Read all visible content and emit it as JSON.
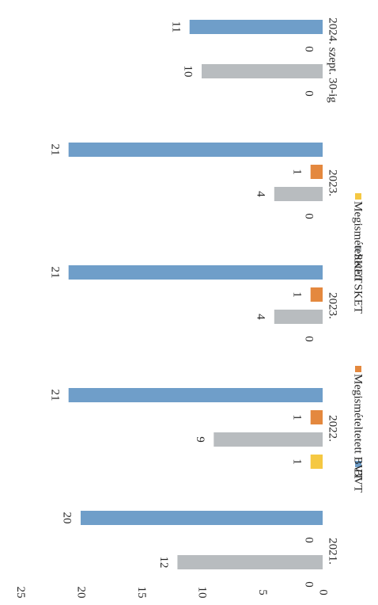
{
  "chart_data": {
    "type": "bar",
    "orientation": "horizontal-bars-rotated-page",
    "categories": [
      "2021.",
      "2022.",
      "2023.",
      "2023.",
      "2024. szept. 30-ig"
    ],
    "series": [
      {
        "name": "BVT",
        "color": "#6f9ec9",
        "values": [
          20,
          21,
          21,
          21,
          11
        ],
        "labels": [
          "20",
          "21",
          "21",
          "21",
          "11"
        ]
      },
      {
        "name": "Megismételtetett BVT",
        "color": "#e4883e",
        "values": [
          0,
          1,
          1,
          1,
          0
        ],
        "labels": [
          "0",
          "1",
          "1",
          "1",
          "0"
        ]
      },
      {
        "name": "SKET",
        "color": "#b8bcbf",
        "values": [
          12,
          9,
          4,
          4,
          10
        ],
        "labels": [
          "12",
          "9",
          "4",
          "4",
          "10"
        ]
      },
      {
        "name": "Megismételtetett SKET",
        "color": "#f5c842",
        "values": [
          0,
          1,
          0,
          0,
          0
        ],
        "labels": [
          "0",
          "1",
          "0",
          "0",
          "0"
        ]
      }
    ],
    "value_axis": {
      "min": 0,
      "max": 25,
      "step": 5,
      "tick_labels": [
        "0",
        "5",
        "10",
        "15",
        "20",
        "25"
      ]
    },
    "grid": false,
    "legend_position": "bottom"
  }
}
